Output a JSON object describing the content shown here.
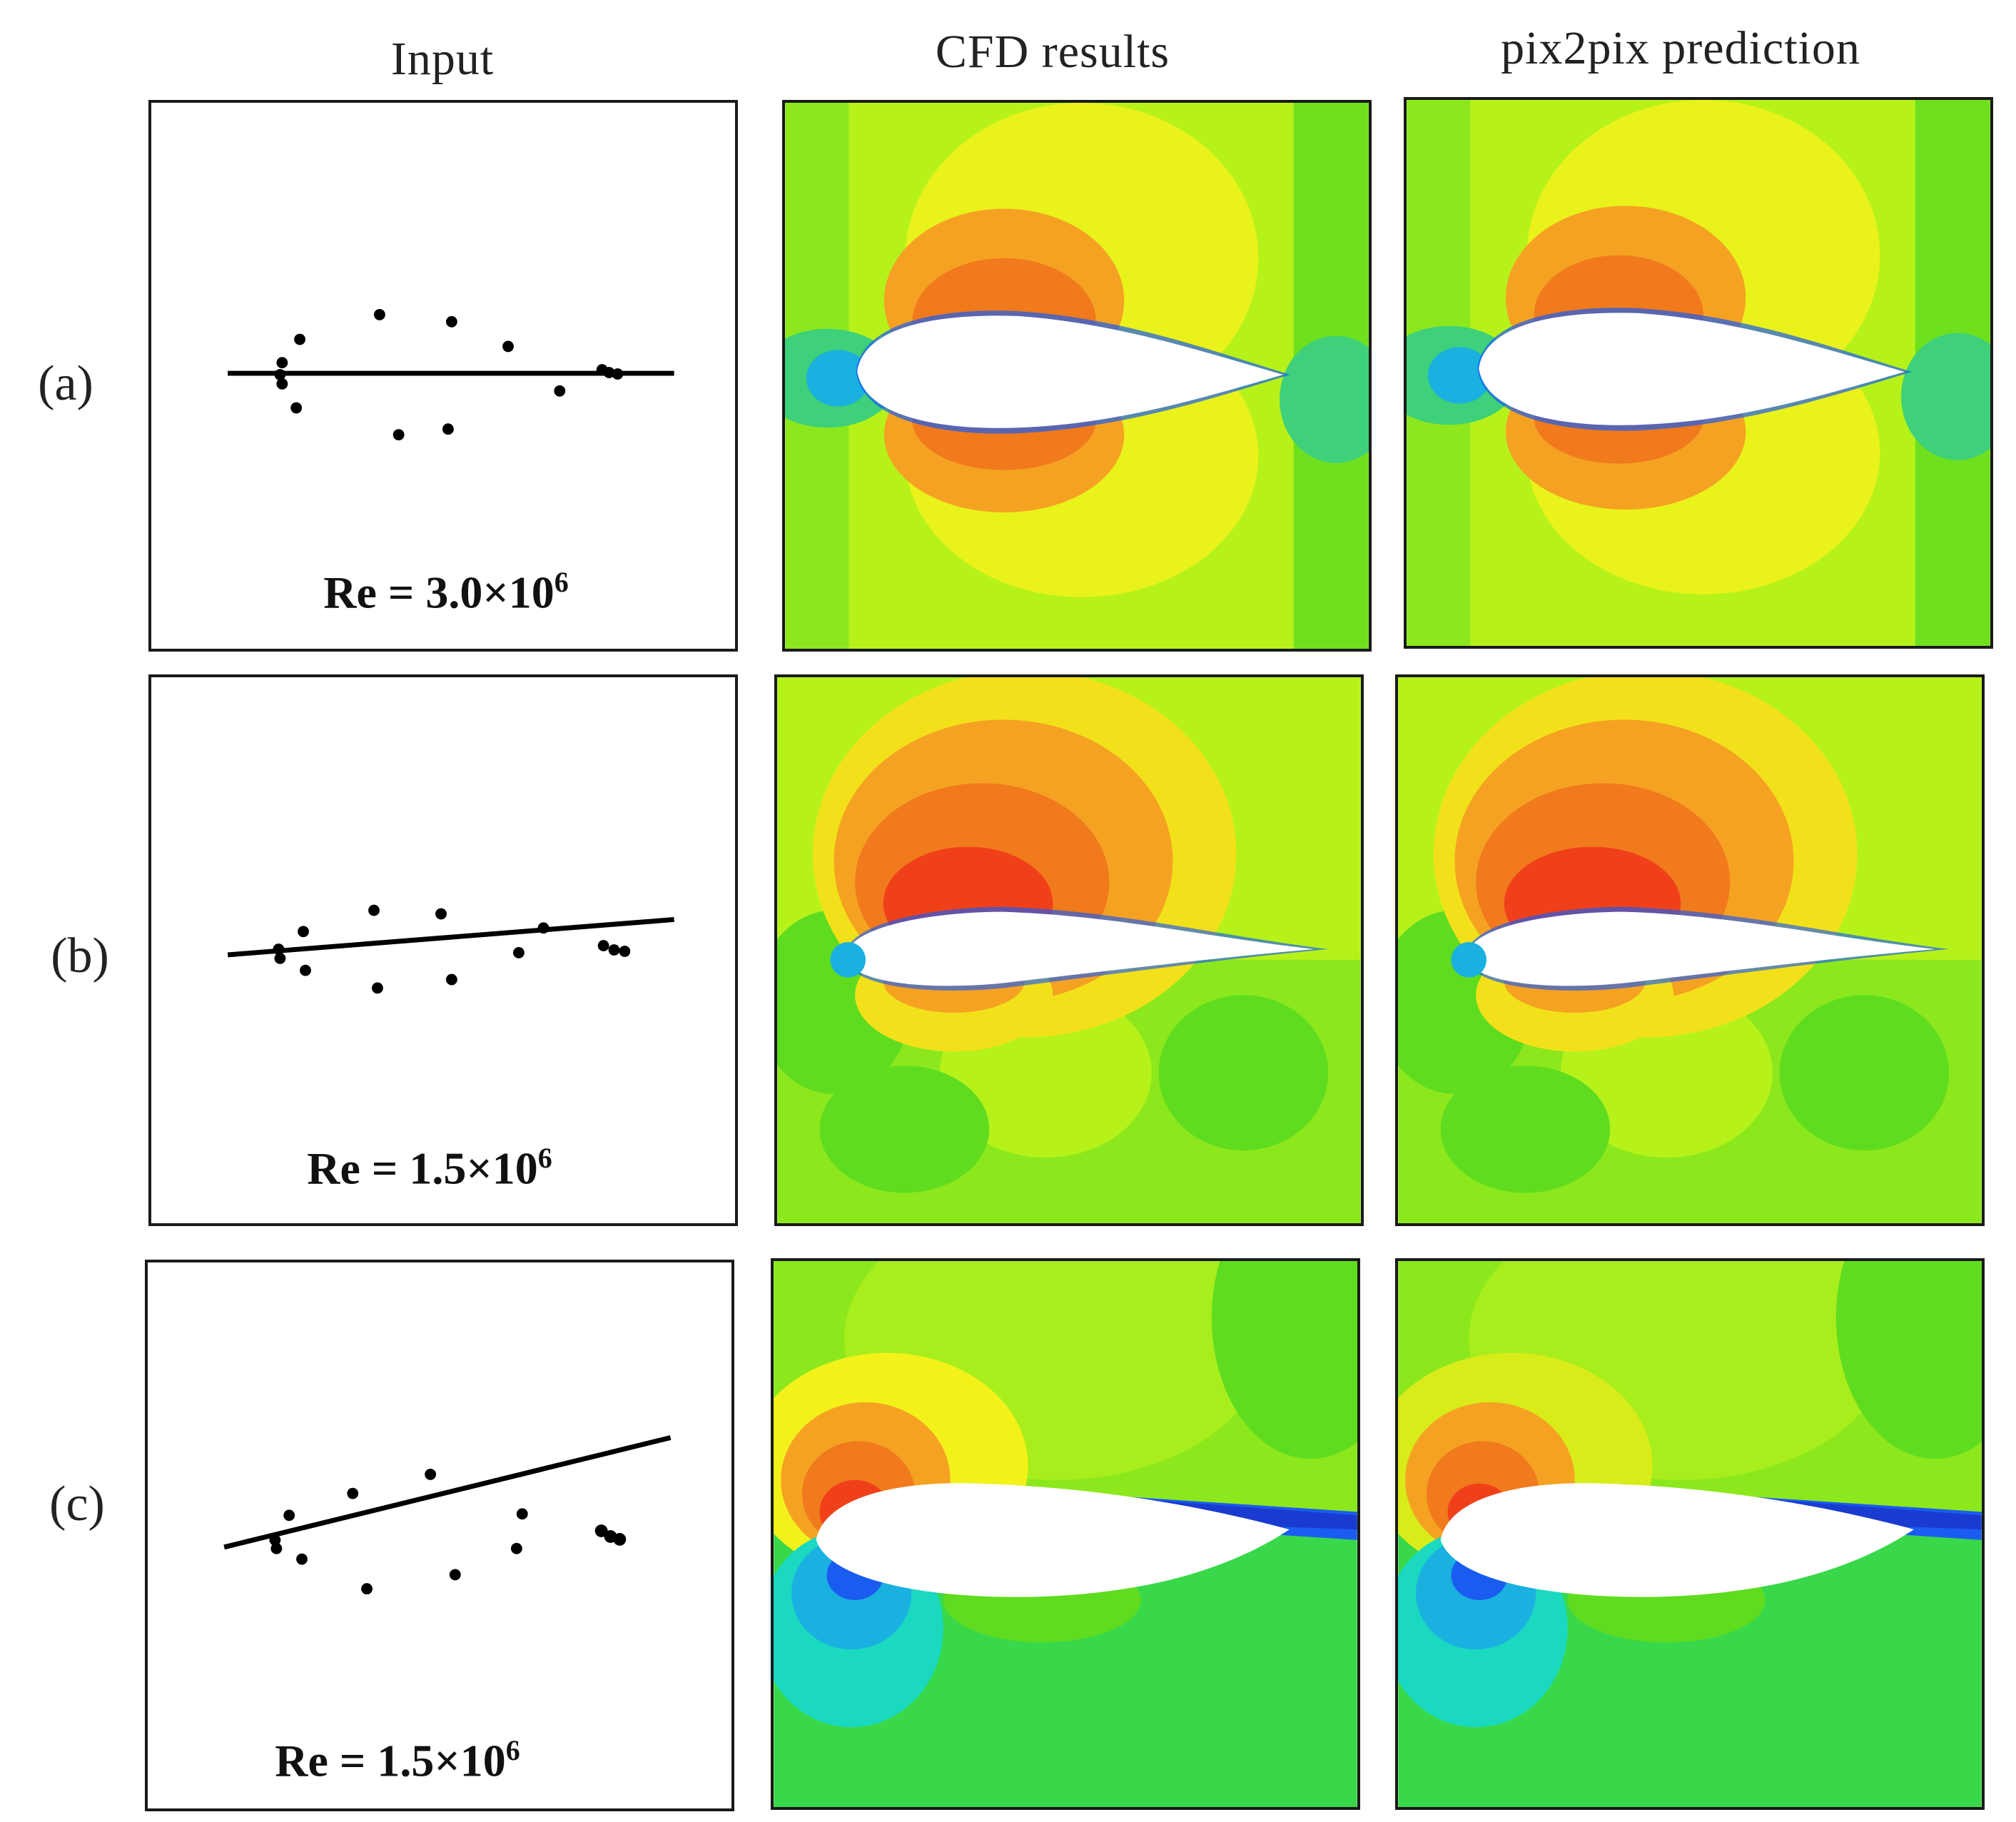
{
  "headers": {
    "input": "Input",
    "cfd": "CFD results",
    "pix2pix": "pix2pix prediction"
  },
  "rows": [
    {
      "label": "(a)",
      "re_prefix": "Re = 3.0×10",
      "re_exp": "6"
    },
    {
      "label": "(b)",
      "re_prefix": "Re = 1.5×10",
      "re_exp": "6"
    },
    {
      "label": "(c)",
      "re_prefix": "Re = 1.5×10",
      "re_exp": "6"
    }
  ],
  "colors": {
    "field_green": "#5fdc1f",
    "field_yellowgreen": "#b6f21a",
    "field_yellow": "#f2f21a",
    "field_orange": "#f5a223",
    "field_red": "#f0401a",
    "field_blue": "#1a5cf0",
    "field_cyan": "#1ad9d0",
    "airfoil": "#ffffff"
  }
}
